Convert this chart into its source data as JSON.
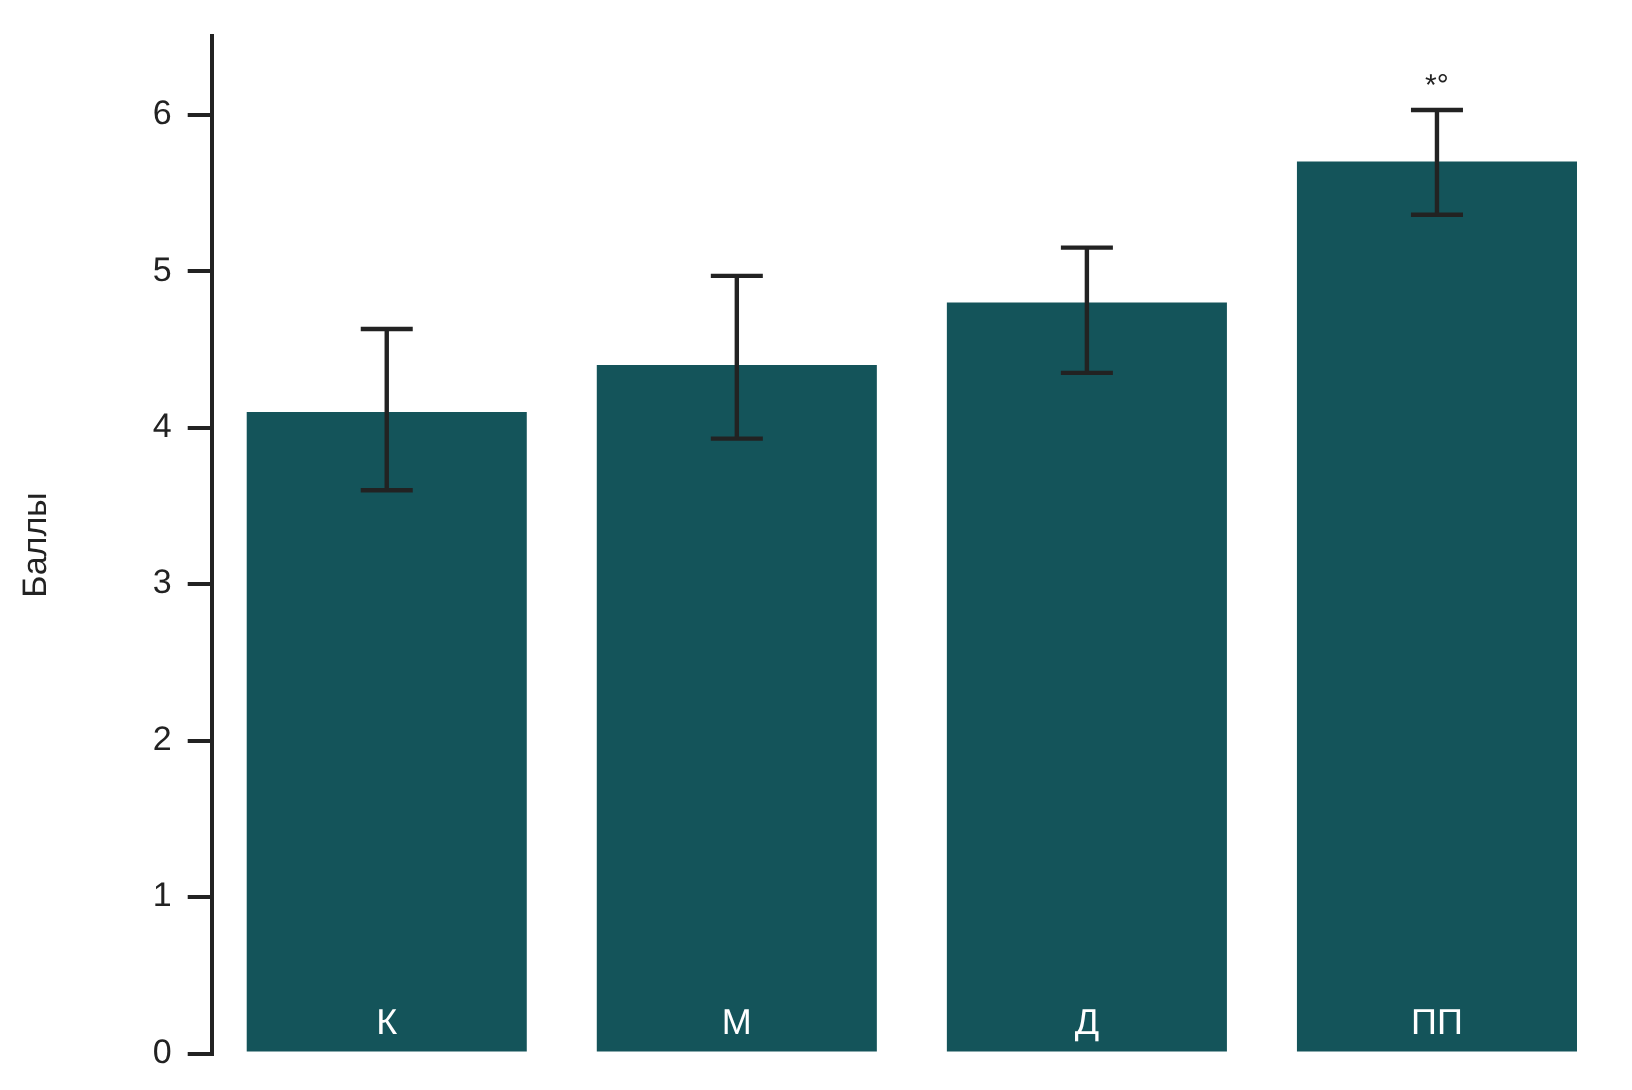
{
  "chart_data": {
    "type": "bar",
    "ylabel": "Баллы",
    "categories": [
      "К",
      "М",
      "Д",
      "ПП"
    ],
    "values": [
      4.1,
      4.4,
      4.8,
      5.7
    ],
    "errors": [
      [
        3.6,
        4.63
      ],
      [
        3.93,
        4.97
      ],
      [
        4.35,
        5.15
      ],
      [
        5.36,
        6.03
      ]
    ],
    "color": "#14545a",
    "ylim": [
      0,
      6.5
    ],
    "yticks": [
      0,
      1,
      2,
      3,
      4,
      5,
      6
    ],
    "grid": false,
    "legend": false,
    "annotations": [
      "*°"
    ]
  }
}
